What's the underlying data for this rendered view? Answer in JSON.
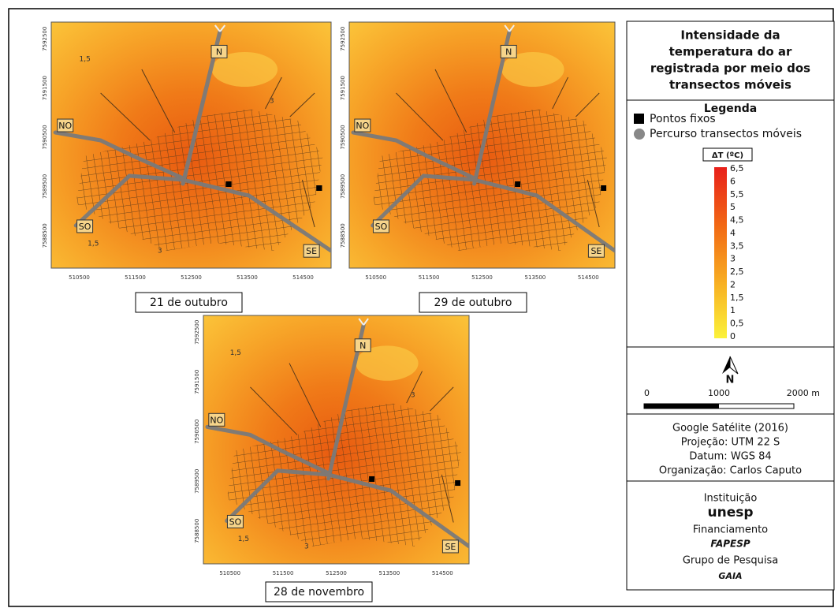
{
  "maps": [
    {
      "caption": "21 de outubro",
      "x_ticks": [
        "510500",
        "511500",
        "512500",
        "513500",
        "514500"
      ],
      "y_ticks": [
        "7592500",
        "7591500",
        "7590500",
        "7589500",
        "7588500"
      ],
      "directions": [
        "N",
        "NO",
        "SO",
        "SE"
      ],
      "isolines": [
        "1,5",
        "3",
        "1,5",
        "3"
      ]
    },
    {
      "caption": "29 de outubro",
      "x_ticks": [
        "510500",
        "511500",
        "512500",
        "513500",
        "514500"
      ],
      "y_ticks": [
        "7592500",
        "7591500",
        "7590500",
        "7589500",
        "7588500"
      ],
      "directions": [
        "N",
        "NO",
        "SO",
        "SE"
      ],
      "isolines": []
    },
    {
      "caption": "28 de novembro",
      "x_ticks": [
        "510500",
        "511500",
        "512500",
        "513500",
        "514500"
      ],
      "y_ticks": [
        "7592500",
        "7591500",
        "7590500",
        "7589500",
        "7588500"
      ],
      "directions": [
        "N",
        "NO",
        "SO",
        "SE"
      ],
      "isolines": [
        "1,5",
        "3",
        "1,5",
        "3"
      ]
    }
  ],
  "legend": {
    "title": [
      "Intensidade da",
      "temperatura do ar",
      "registrada por meio dos",
      "transectos móveis"
    ],
    "heading": "Legenda",
    "items": [
      "Pontos fixos",
      "Percurso transectos móveis"
    ],
    "scale_title": "ΔT (ºC)",
    "scale_labels": [
      "6,5",
      "6",
      "5,5",
      "5",
      "4,5",
      "4",
      "3,5",
      "3",
      "2,5",
      "2",
      "1,5",
      "1",
      "0,5",
      "0"
    ],
    "north": "N",
    "scalebar": [
      "0",
      "1000",
      "2000 m"
    ],
    "credits": [
      "Google Satélite (2016)",
      "Projeção: UTM 22 S",
      "Datum: WGS 84",
      "Organização: Carlos Caputo"
    ],
    "institutions": [
      "Instituição",
      "unesp",
      "Financiamento",
      "FAPESP",
      "Grupo de Pesquisa",
      "GAIA"
    ]
  }
}
